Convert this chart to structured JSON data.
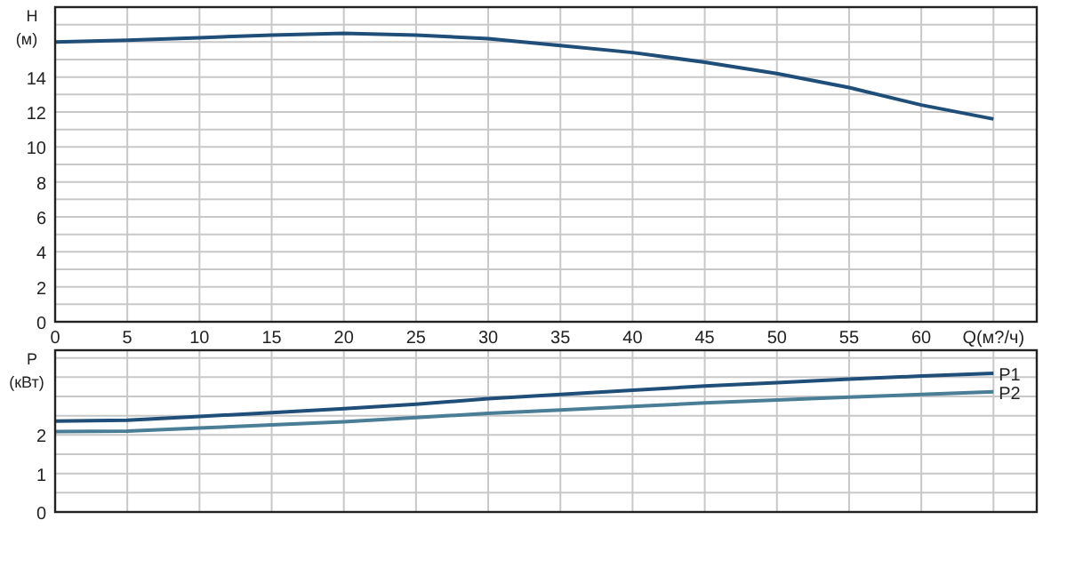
{
  "chart_data": [
    {
      "type": "line",
      "ylabel": "H (м)",
      "x": [
        0,
        5,
        10,
        15,
        20,
        25,
        30,
        35,
        40,
        45,
        50,
        55,
        60,
        65
      ],
      "xlim": [
        0,
        68
      ],
      "ylim": [
        0,
        18
      ],
      "xticks": [
        0,
        5,
        10,
        15,
        20,
        25,
        30,
        35,
        40,
        45,
        50,
        55,
        60,
        {
          "value": 65,
          "label": "Q(м?/ч)"
        }
      ],
      "yticks": [
        0,
        {
          "value": 1,
          "label": null
        },
        2,
        {
          "value": 3,
          "label": null
        },
        4,
        {
          "value": 5,
          "label": null
        },
        6,
        {
          "value": 7,
          "label": null
        },
        8,
        {
          "value": 9,
          "label": null
        },
        10,
        {
          "value": 11,
          "label": null
        },
        12,
        {
          "value": 13,
          "label": null
        },
        14,
        {
          "value": 15,
          "label": null
        },
        {
          "value": 16,
          "label": null
        },
        {
          "value": 17,
          "label": null
        },
        {
          "value": 18,
          "label": null
        }
      ],
      "grid": true,
      "marker": "none",
      "series": [
        {
          "color": "#1f4e79",
          "values": [
            16.0,
            16.1,
            16.25,
            16.4,
            16.5,
            16.4,
            16.2,
            15.8,
            15.4,
            14.85,
            14.2,
            13.4,
            12.4,
            11.6
          ]
        }
      ]
    },
    {
      "type": "line",
      "ylabel": "P (кВт)",
      "x": [
        0,
        5,
        10,
        15,
        20,
        25,
        30,
        35,
        40,
        45,
        50,
        55,
        60,
        65
      ],
      "xlim": [
        0,
        68
      ],
      "ylim": [
        0,
        4.2
      ],
      "xticks": [
        0,
        5,
        10,
        15,
        20,
        25,
        30,
        35,
        40,
        45,
        50,
        55,
        60,
        65
      ],
      "yticks": [
        0,
        {
          "value": 0.5,
          "label": null
        },
        1,
        {
          "value": 1.5,
          "label": null
        },
        2,
        {
          "value": 2.5,
          "label": null
        },
        {
          "value": 3,
          "label": null
        },
        {
          "value": 3.5,
          "label": null
        },
        {
          "value": 4,
          "label": null
        }
      ],
      "grid": true,
      "marker": "none",
      "tick_labels": "y",
      "series": [
        {
          "name": "P1",
          "color": "#1f4e79",
          "values": [
            2.36,
            2.38,
            2.48,
            2.58,
            2.68,
            2.8,
            2.94,
            3.05,
            3.16,
            3.27,
            3.36,
            3.45,
            3.53,
            3.6
          ]
        },
        {
          "name": "P2",
          "color": "#4a7d96",
          "values": [
            2.09,
            2.1,
            2.18,
            2.26,
            2.34,
            2.45,
            2.56,
            2.65,
            2.74,
            2.83,
            2.91,
            2.98,
            3.05,
            3.12
          ]
        }
      ]
    }
  ]
}
